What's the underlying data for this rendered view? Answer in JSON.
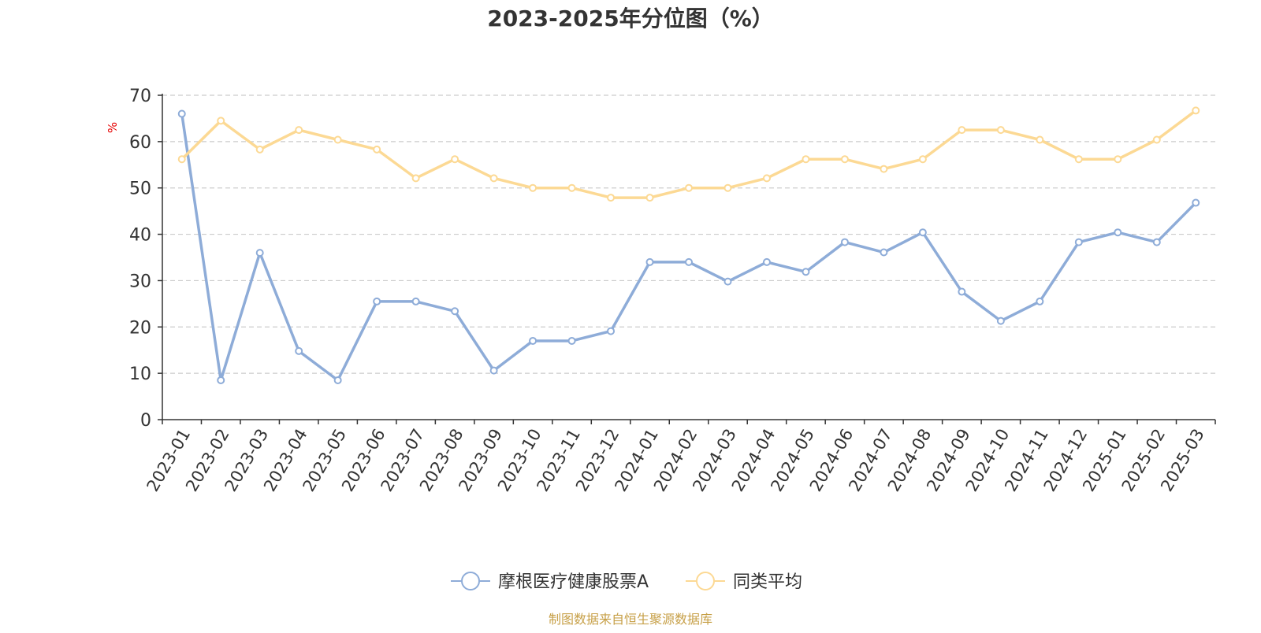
{
  "chart_data": {
    "type": "line",
    "title": "2023-2025年分位图（%）",
    "ylabel": "%",
    "ylim": [
      0,
      70
    ],
    "yticks": [
      0,
      10,
      20,
      30,
      40,
      50,
      60,
      70
    ],
    "grid": true,
    "legend_position": "bottom-center",
    "categories": [
      "2023-01",
      "2023-02",
      "2023-03",
      "2023-04",
      "2023-05",
      "2023-06",
      "2023-07",
      "2023-08",
      "2023-09",
      "2023-10",
      "2023-11",
      "2023-12",
      "2024-01",
      "2024-02",
      "2024-03",
      "2024-04",
      "2024-05",
      "2024-06",
      "2024-07",
      "2024-08",
      "2024-09",
      "2024-10",
      "2024-11",
      "2024-12",
      "2025-01",
      "2025-02",
      "2025-03"
    ],
    "series": [
      {
        "name": "摩根医疗健康股票A",
        "color": "#8eacd8",
        "values": [
          66,
          8.5,
          36,
          14.8,
          8.5,
          25.5,
          25.5,
          23.4,
          10.6,
          17,
          17,
          19.1,
          34,
          34,
          29.8,
          34,
          31.9,
          38.3,
          36.1,
          40.4,
          27.6,
          21.3,
          25.5,
          38.3,
          40.4,
          38.3,
          46.8
        ]
      },
      {
        "name": "同类平均",
        "color": "#fcd994",
        "values": [
          56.2,
          64.5,
          58.3,
          62.5,
          60.4,
          58.3,
          52.1,
          56.2,
          52.1,
          50,
          50,
          47.9,
          47.9,
          50,
          50,
          52.1,
          56.2,
          56.2,
          54.1,
          56.2,
          62.5,
          62.5,
          60.4,
          56.2,
          56.2,
          60.4,
          66.7
        ]
      }
    ]
  },
  "footer": {
    "source_text": "制图数据来自恒生聚源数据库",
    "source_color": "#c7a048"
  },
  "colors": {
    "title": "#333333",
    "axis": "#333333",
    "grid": "#cccccc",
    "ylabel": "#e60000",
    "text": "#333333"
  }
}
